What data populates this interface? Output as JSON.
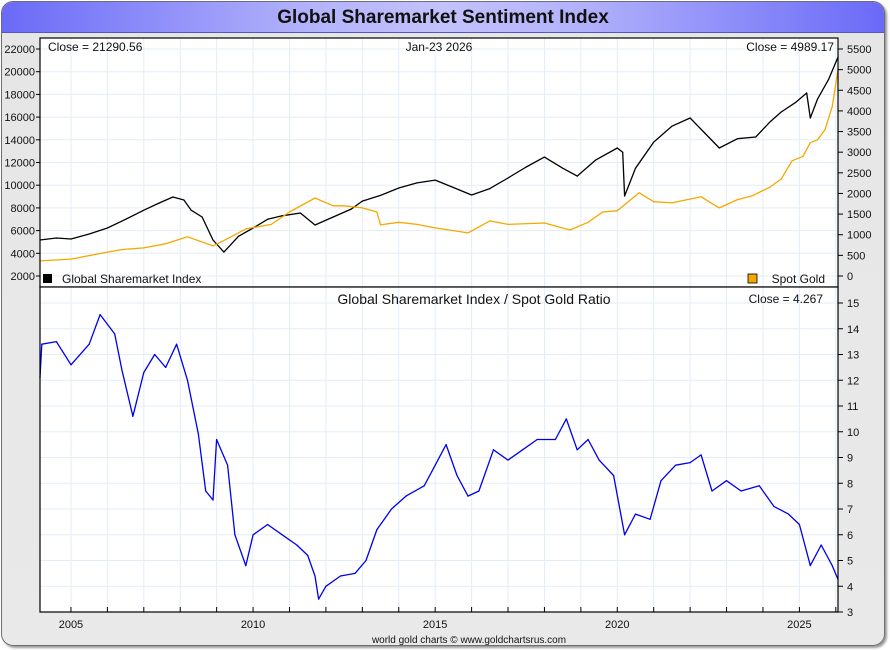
{
  "title": "Global Sharemarket Sentiment Index",
  "footer": "world gold charts © www.goldchartsrus.com",
  "colors": {
    "share_index": "#000000",
    "gold": "#f5a800",
    "ratio": "#0000ee",
    "grid": "#e3edf7"
  },
  "chart_data": [
    {
      "type": "line",
      "title": "Global Sharemarket Index vs Spot Gold",
      "date_label": "Jan-23  2026",
      "left_close": "Close = 21290.56",
      "right_close": "Close = 4989.17",
      "xlim": [
        2004.15,
        2026.06
      ],
      "x_ticks": [
        "2005",
        "2010",
        "2015",
        "2020",
        "2025"
      ],
      "y_left": {
        "ylim": [
          2000,
          22000
        ],
        "ticks": [
          "2000",
          "4000",
          "6000",
          "8000",
          "10000",
          "12000",
          "14000",
          "16000",
          "18000",
          "20000",
          "22000"
        ]
      },
      "y_right": {
        "ylim": [
          0,
          5500
        ],
        "ticks": [
          "0",
          "500",
          "1000",
          "1500",
          "2000",
          "2500",
          "3000",
          "3500",
          "4000",
          "4500",
          "5000",
          "5500"
        ]
      },
      "legend": [
        "Global Sharemarket Index",
        "Spot Gold"
      ],
      "series": [
        {
          "name": "Global Sharemarket Index",
          "axis": "left",
          "x": [
            2004.15,
            2004.6,
            2005.0,
            2005.5,
            2006.0,
            2006.5,
            2007.0,
            2007.4,
            2007.8,
            2008.1,
            2008.3,
            2008.6,
            2008.9,
            2009.2,
            2009.6,
            2010.0,
            2010.4,
            2010.8,
            2011.3,
            2011.7,
            2012.2,
            2012.7,
            2013.0,
            2013.5,
            2014.0,
            2014.5,
            2015.0,
            2015.5,
            2016.0,
            2016.5,
            2017.0,
            2017.5,
            2018.0,
            2018.5,
            2018.9,
            2019.4,
            2020.0,
            2020.15,
            2020.2,
            2020.5,
            2021.0,
            2021.5,
            2022.0,
            2022.4,
            2022.8,
            2023.3,
            2023.8,
            2024.2,
            2024.5,
            2024.9,
            2025.2,
            2025.3,
            2025.5,
            2025.8,
            2026.06
          ],
          "values": [
            5170,
            5350,
            5260,
            5700,
            6230,
            7000,
            7800,
            8400,
            8960,
            8700,
            7800,
            7200,
            5170,
            4110,
            5500,
            6230,
            7000,
            7300,
            7550,
            6490,
            7200,
            7900,
            8600,
            9100,
            9750,
            10200,
            10450,
            9800,
            9140,
            9700,
            10630,
            11600,
            12480,
            11500,
            10800,
            12200,
            13280,
            12900,
            9050,
            11500,
            13800,
            15200,
            15920,
            14600,
            13280,
            14100,
            14250,
            15600,
            16450,
            17300,
            18120,
            15920,
            17600,
            19300,
            21290
          ]
        },
        {
          "name": "Spot Gold",
          "axis": "right",
          "x": [
            2004.15,
            2005.0,
            2006.0,
            2006.4,
            2007.0,
            2007.6,
            2008.2,
            2008.9,
            2009.4,
            2009.8,
            2010.5,
            2011.0,
            2011.7,
            2012.2,
            2012.5,
            2013.0,
            2013.4,
            2013.5,
            2014.0,
            2014.5,
            2015.0,
            2015.9,
            2016.5,
            2017.0,
            2018.0,
            2018.7,
            2019.2,
            2019.6,
            2020.0,
            2020.6,
            2021.0,
            2021.5,
            2022.3,
            2022.8,
            2023.3,
            2023.7,
            2024.2,
            2024.5,
            2024.8,
            2025.1,
            2025.3,
            2025.5,
            2025.7,
            2025.9,
            2026.06
          ],
          "values": [
            365,
            410,
            580,
            640,
            680,
            780,
            950,
            730,
            950,
            1140,
            1250,
            1550,
            1890,
            1700,
            1700,
            1650,
            1550,
            1240,
            1300,
            1250,
            1165,
            1045,
            1335,
            1250,
            1285,
            1115,
            1300,
            1550,
            1580,
            2015,
            1800,
            1770,
            1920,
            1650,
            1850,
            1940,
            2160,
            2350,
            2790,
            2900,
            3230,
            3300,
            3540,
            4100,
            4989
          ]
        }
      ]
    },
    {
      "type": "line",
      "title": "Global Sharemarket Index  /  Spot Gold Ratio",
      "close_label": "Close = 4.267",
      "xlim": [
        2004.15,
        2026.06
      ],
      "x_ticks": [
        "2005",
        "2010",
        "2015",
        "2020",
        "2025"
      ],
      "ylim": [
        3,
        15
      ],
      "y_ticks": [
        "3",
        "4",
        "5",
        "6",
        "7",
        "8",
        "9",
        "10",
        "11",
        "12",
        "13",
        "14",
        "15"
      ],
      "series": [
        {
          "name": "Global Sharemarket Index / Spot Gold Ratio",
          "x": [
            2004.15,
            2004.2,
            2004.6,
            2005.0,
            2005.5,
            2005.8,
            2006.2,
            2006.4,
            2006.7,
            2007.0,
            2007.3,
            2007.6,
            2007.9,
            2008.2,
            2008.5,
            2008.7,
            2008.9,
            2009.0,
            2009.3,
            2009.5,
            2009.8,
            2010.0,
            2010.4,
            2010.8,
            2011.2,
            2011.5,
            2011.7,
            2011.8,
            2012.0,
            2012.4,
            2012.8,
            2013.1,
            2013.4,
            2013.8,
            2014.2,
            2014.7,
            2015.0,
            2015.3,
            2015.6,
            2015.9,
            2016.2,
            2016.6,
            2017.0,
            2017.4,
            2017.8,
            2018.3,
            2018.6,
            2018.9,
            2019.2,
            2019.5,
            2019.9,
            2020.2,
            2020.5,
            2020.9,
            2021.2,
            2021.6,
            2022.0,
            2022.3,
            2022.6,
            2023.0,
            2023.4,
            2023.9,
            2024.3,
            2024.7,
            2025.0,
            2025.3,
            2025.6,
            2025.9,
            2026.06
          ],
          "values": [
            12.1,
            13.4,
            13.5,
            12.6,
            13.4,
            14.55,
            13.8,
            12.4,
            10.6,
            12.3,
            13.0,
            12.5,
            13.4,
            12.0,
            9.9,
            7.7,
            7.35,
            9.7,
            8.7,
            6.0,
            4.8,
            6.0,
            6.4,
            6.0,
            5.6,
            5.2,
            4.4,
            3.5,
            4.0,
            4.4,
            4.5,
            5.0,
            6.2,
            7.0,
            7.5,
            7.9,
            8.7,
            9.5,
            8.3,
            7.5,
            7.7,
            9.3,
            8.9,
            9.3,
            9.7,
            9.7,
            10.5,
            9.3,
            9.7,
            8.9,
            8.3,
            6.0,
            6.8,
            6.6,
            8.1,
            8.7,
            8.8,
            9.1,
            7.7,
            8.1,
            7.7,
            7.9,
            7.1,
            6.8,
            6.4,
            4.8,
            5.6,
            4.8,
            4.267
          ]
        }
      ]
    }
  ]
}
